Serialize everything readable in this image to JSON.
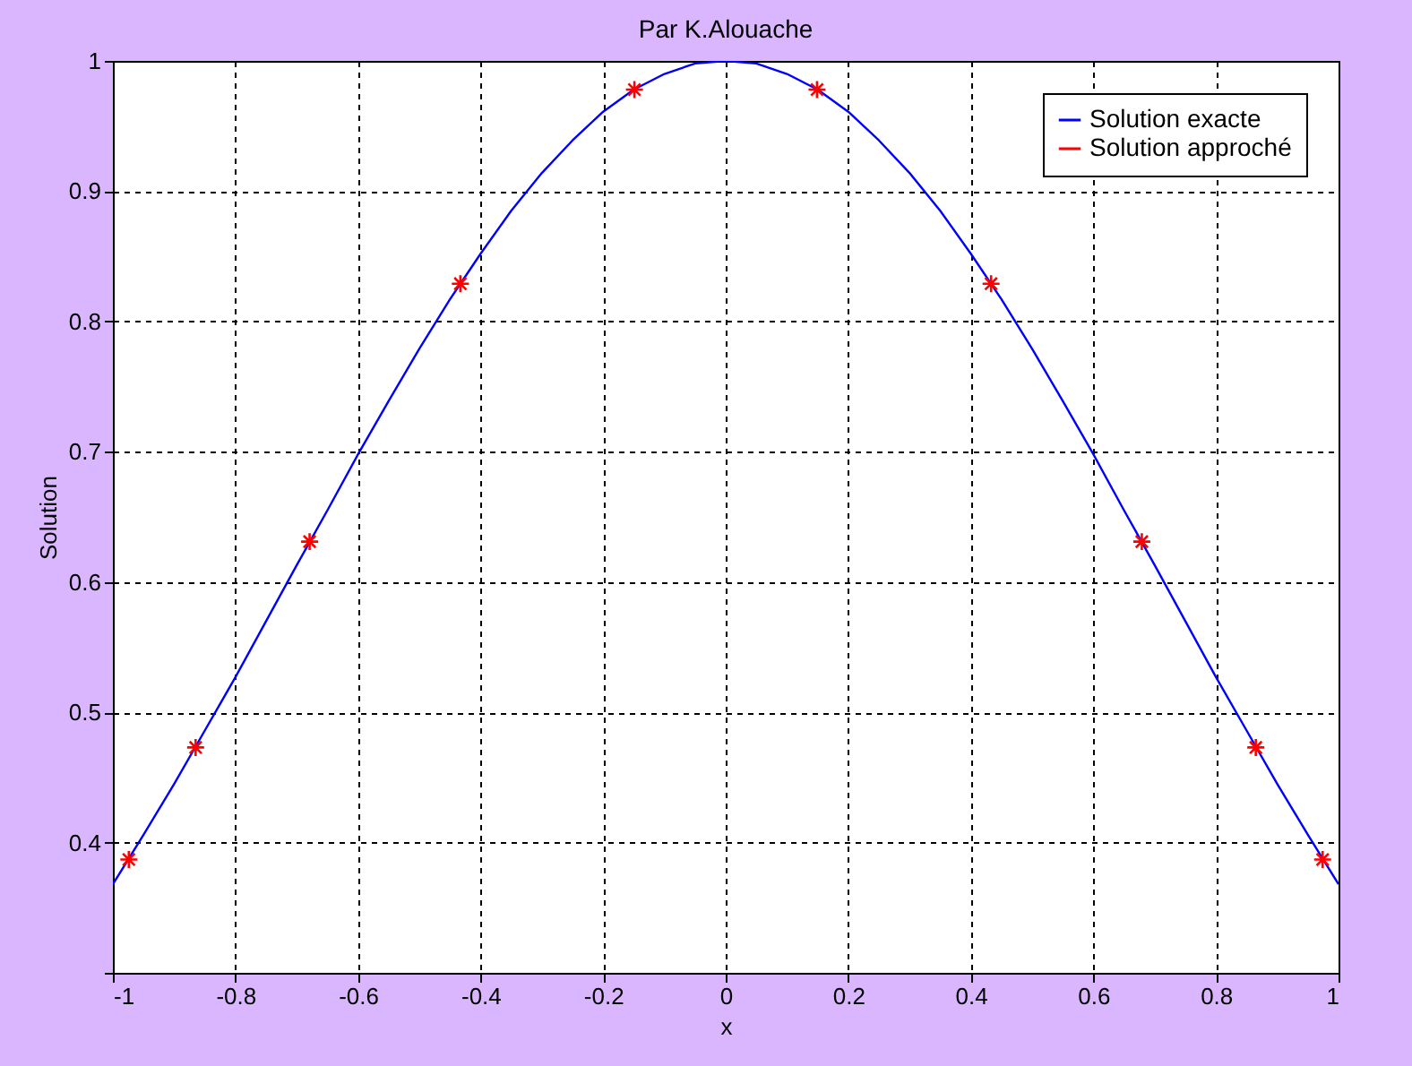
{
  "chart_data": {
    "type": "line",
    "title": "Par K.Alouache",
    "xlabel": "x",
    "ylabel": "Solution",
    "xlim": [
      -1,
      1
    ],
    "xticks": [
      -1,
      -0.8,
      -0.6,
      -0.4,
      -0.2,
      0,
      0.2,
      0.4,
      0.6,
      0.8,
      1
    ],
    "ylim": [
      0.3,
      1
    ],
    "yticks": [
      {
        "value": 0.3,
        "label": null
      },
      0.4,
      0.5,
      0.6,
      0.7,
      0.8,
      0.9,
      1
    ],
    "grid": true,
    "legend": "top right",
    "series": [
      {
        "name": "Solution exacte",
        "color": "#0000ff",
        "line_style": "solid",
        "marker": "none",
        "x": [
          -1,
          -0.95,
          -0.9,
          -0.85,
          -0.8,
          -0.75,
          -0.7,
          -0.65,
          -0.6,
          -0.55,
          -0.5,
          -0.45,
          -0.4,
          -0.35,
          -0.3,
          -0.25,
          -0.2,
          -0.15,
          -0.1,
          -0.05,
          0,
          0.05,
          0.1,
          0.15,
          0.2,
          0.25,
          0.3,
          0.35,
          0.4,
          0.45,
          0.5,
          0.55,
          0.6,
          0.65,
          0.7,
          0.75,
          0.8,
          0.85,
          0.9,
          0.95,
          1
        ],
        "values": [
          0.368,
          0.406,
          0.445,
          0.486,
          0.527,
          0.57,
          0.613,
          0.655,
          0.698,
          0.739,
          0.779,
          0.817,
          0.852,
          0.885,
          0.914,
          0.939,
          0.961,
          0.978,
          0.99,
          0.998,
          1.0,
          0.998,
          0.99,
          0.978,
          0.961,
          0.939,
          0.914,
          0.885,
          0.852,
          0.817,
          0.779,
          0.739,
          0.698,
          0.655,
          0.613,
          0.57,
          0.527,
          0.486,
          0.445,
          0.406,
          0.368
        ]
      },
      {
        "name": "Solution approché",
        "type": "scatter",
        "color": "#ff0000",
        "marker": "cross",
        "x": [
          -0.974,
          -0.865,
          -0.679,
          -0.433,
          -0.149,
          0.149,
          0.433,
          0.679,
          0.865,
          0.974
        ],
        "values": [
          0.387,
          0.473,
          0.631,
          0.829,
          0.978,
          0.978,
          0.829,
          0.631,
          0.473,
          0.387
        ]
      }
    ]
  }
}
